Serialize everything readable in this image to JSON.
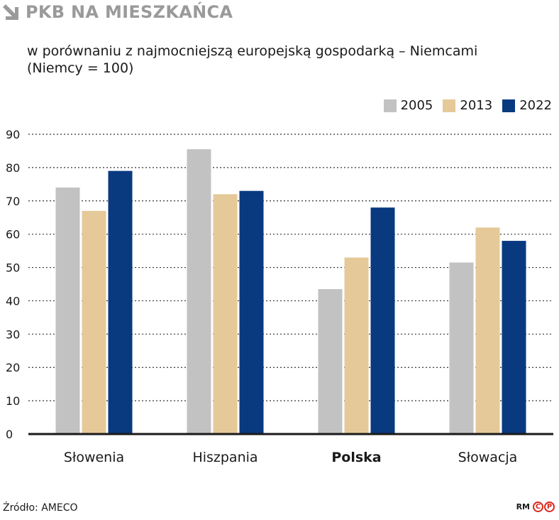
{
  "header": {
    "title": "PKB NA MIESZKAŃCA",
    "subtitle_line1": "w porównaniu z najmocniejszą europejską gospodarką – Niemcami",
    "subtitle_line2": "(Niemcy = 100)"
  },
  "footer": {
    "source": "Źródło: AMECO",
    "author": "RM",
    "logo_c": "C",
    "logo_p": "P"
  },
  "colors": {
    "2005": "#c2c2c2",
    "2013": "#e5c998",
    "2022": "#093a80",
    "title": "#9a9a9a",
    "logo": "#d9261c"
  },
  "chart_data": {
    "type": "bar",
    "categories": [
      "Słowenia",
      "Hiszpania",
      "Polska",
      "Słowacja"
    ],
    "highlight_category": "Polska",
    "series": [
      {
        "name": "2005",
        "values": [
          74,
          85.5,
          43.5,
          51.5
        ]
      },
      {
        "name": "2013",
        "values": [
          67,
          72,
          53,
          62
        ]
      },
      {
        "name": "2022",
        "values": [
          79,
          73,
          68,
          58
        ]
      }
    ],
    "ylim": [
      0,
      90
    ],
    "yticks": [
      0,
      10,
      20,
      30,
      40,
      50,
      60,
      70,
      80,
      90
    ],
    "grid": true,
    "legend_position": "top-right"
  }
}
